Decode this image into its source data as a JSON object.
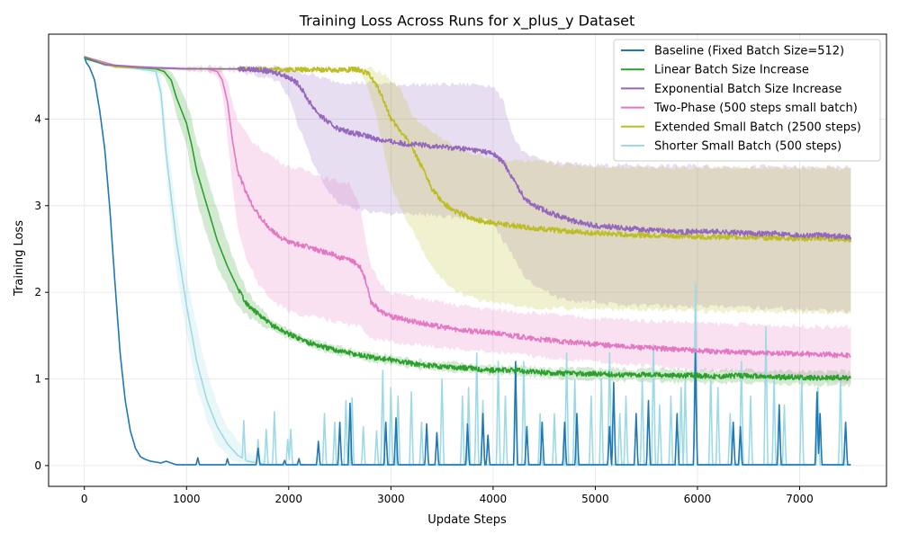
{
  "chart_data": {
    "type": "line",
    "title": "Training Loss Across Runs for x_plus_y Dataset",
    "xlabel": "Update Steps",
    "ylabel": "Training Loss",
    "xlim": [
      -350,
      7850
    ],
    "ylim": [
      -0.24,
      4.98
    ],
    "xticks": [
      0,
      1000,
      2000,
      3000,
      4000,
      5000,
      6000,
      7000
    ],
    "yticks": [
      0,
      1,
      2,
      3,
      4
    ],
    "grid": true,
    "legend_position": "top-right",
    "series": [
      {
        "name": "Baseline (Fixed Batch Size=512)",
        "color": "#1f77b4",
        "x": [
          0,
          20,
          50,
          100,
          150,
          200,
          250,
          300,
          350,
          400,
          450,
          500,
          550,
          600,
          650,
          700,
          750,
          800,
          850,
          900,
          1000,
          1100,
          1200,
          1400,
          1600,
          1800,
          2000,
          2400,
          2800,
          3200,
          3600,
          4000,
          4400,
          4800,
          5200,
          5600,
          6000,
          6400,
          6800,
          7200,
          7500
        ],
        "y": [
          4.72,
          4.65,
          4.6,
          4.45,
          4.1,
          3.65,
          2.95,
          2.1,
          1.3,
          0.75,
          0.4,
          0.2,
          0.1,
          0.07,
          0.05,
          0.04,
          0.03,
          0.05,
          0.03,
          0.01,
          0.01,
          0.01,
          0.01,
          0.01,
          0.01,
          0.01,
          0.01,
          0.01,
          0.01,
          0.01,
          0.01,
          0.01,
          0.01,
          0.01,
          0.01,
          0.01,
          0.01,
          0.01,
          0.01,
          0.01,
          0.01
        ],
        "spikes": [
          [
            1110,
            0.09
          ],
          [
            1400,
            0.08
          ],
          [
            1700,
            0.2
          ],
          [
            1960,
            0.06
          ],
          [
            2100,
            0.08
          ],
          [
            2290,
            0.28
          ],
          [
            2500,
            0.5
          ],
          [
            2600,
            0.72
          ],
          [
            2950,
            0.5
          ],
          [
            3050,
            0.55
          ],
          [
            3350,
            0.48
          ],
          [
            3450,
            0.38
          ],
          [
            3750,
            0.48
          ],
          [
            3900,
            0.6
          ],
          [
            3950,
            0.35
          ],
          [
            4220,
            1.2
          ],
          [
            4330,
            0.45
          ],
          [
            4480,
            0.5
          ],
          [
            4700,
            0.5
          ],
          [
            4820,
            0.6
          ],
          [
            5140,
            0.45
          ],
          [
            5180,
            0.96
          ],
          [
            5400,
            0.6
          ],
          [
            5520,
            0.75
          ],
          [
            5800,
            0.6
          ],
          [
            5980,
            1.3
          ],
          [
            6350,
            0.5
          ],
          [
            6420,
            0.45
          ],
          [
            6800,
            0.7
          ],
          [
            7170,
            0.85
          ],
          [
            7200,
            0.6
          ],
          [
            7450,
            0.5
          ]
        ]
      },
      {
        "name": "Linear Batch Size Increase",
        "color": "#2ca02c",
        "x": [
          0,
          200,
          400,
          700,
          780,
          850,
          900,
          1000,
          1050,
          1100,
          1200,
          1300,
          1400,
          1500,
          1600,
          1700,
          1800,
          1900,
          2000,
          2200,
          2400,
          2600,
          2800,
          3000,
          3200,
          3400,
          3600,
          3800,
          4000,
          4200,
          4400,
          4600,
          4800,
          5000,
          5200,
          5400,
          5600,
          5800,
          6000,
          6200,
          6400,
          6600,
          6800,
          7000,
          7200,
          7400,
          7500
        ],
        "y": [
          4.7,
          4.63,
          4.6,
          4.58,
          4.55,
          4.45,
          4.25,
          3.95,
          3.7,
          3.4,
          3.0,
          2.6,
          2.3,
          2.05,
          1.85,
          1.75,
          1.65,
          1.58,
          1.52,
          1.42,
          1.35,
          1.3,
          1.25,
          1.22,
          1.18,
          1.15,
          1.14,
          1.12,
          1.1,
          1.1,
          1.08,
          1.07,
          1.06,
          1.06,
          1.05,
          1.05,
          1.05,
          1.04,
          1.04,
          1.03,
          1.04,
          1.03,
          1.02,
          1.02,
          1.01,
          1.02,
          1.0
        ],
        "band_low": [
          4.7,
          4.62,
          4.58,
          4.55,
          4.5,
          4.3,
          4.05,
          3.7,
          3.35,
          3.05,
          2.65,
          2.3,
          2.05,
          1.85,
          1.72,
          1.65,
          1.58,
          1.52,
          1.46,
          1.38,
          1.3,
          1.25,
          1.2,
          1.17,
          1.13,
          1.1,
          1.09,
          1.07,
          1.05,
          1.05,
          1.03,
          1.01,
          1.0,
          0.99,
          0.98,
          0.98,
          0.97,
          0.96,
          0.96,
          0.95,
          0.96,
          0.95,
          0.94,
          0.94,
          0.93,
          0.94,
          0.92
        ],
        "band_high": [
          4.72,
          4.64,
          4.62,
          4.6,
          4.58,
          4.55,
          4.45,
          4.2,
          4.0,
          3.75,
          3.35,
          2.95,
          2.6,
          2.25,
          2.0,
          1.85,
          1.72,
          1.64,
          1.58,
          1.46,
          1.4,
          1.35,
          1.3,
          1.27,
          1.23,
          1.2,
          1.19,
          1.17,
          1.15,
          1.15,
          1.13,
          1.12,
          1.12,
          1.12,
          1.12,
          1.11,
          1.12,
          1.11,
          1.11,
          1.1,
          1.11,
          1.1,
          1.09,
          1.09,
          1.08,
          1.09,
          1.08
        ]
      },
      {
        "name": "Exponential Batch Size Increase",
        "color": "#9467bd",
        "x": [
          0,
          200,
          500,
          1000,
          1500,
          1700,
          1900,
          2000,
          2100,
          2200,
          2300,
          2400,
          2500,
          2700,
          2900,
          3100,
          3300,
          3500,
          3700,
          3900,
          4000,
          4100,
          4200,
          4300,
          4400,
          4600,
          4800,
          5000,
          5200,
          5500,
          5800,
          6000,
          6200,
          6500,
          6800,
          7000,
          7200,
          7500
        ],
        "y": [
          4.72,
          4.63,
          4.6,
          4.58,
          4.58,
          4.57,
          4.53,
          4.48,
          4.4,
          4.2,
          4.05,
          3.95,
          3.88,
          3.82,
          3.76,
          3.72,
          3.7,
          3.68,
          3.66,
          3.63,
          3.6,
          3.5,
          3.3,
          3.1,
          3.0,
          2.9,
          2.82,
          2.77,
          2.75,
          2.72,
          2.7,
          2.7,
          2.7,
          2.68,
          2.68,
          2.66,
          2.66,
          2.64
        ],
        "band_low": [
          4.72,
          4.62,
          4.58,
          4.56,
          4.55,
          4.5,
          4.45,
          4.25,
          3.9,
          3.6,
          3.35,
          3.15,
          3.0,
          2.95,
          2.92,
          2.9,
          2.9,
          2.88,
          2.86,
          2.84,
          2.8,
          2.6,
          2.4,
          2.2,
          2.1,
          1.95,
          1.9,
          1.88,
          1.86,
          1.85,
          1.84,
          1.84,
          1.83,
          1.82,
          1.82,
          1.8,
          1.8,
          1.78
        ],
        "band_high": [
          4.72,
          4.64,
          4.62,
          4.6,
          4.6,
          4.6,
          4.6,
          4.58,
          4.55,
          4.52,
          4.48,
          4.45,
          4.43,
          4.42,
          4.41,
          4.4,
          4.4,
          4.4,
          4.4,
          4.4,
          4.38,
          4.2,
          3.8,
          3.6,
          3.55,
          3.5,
          3.48,
          3.47,
          3.47,
          3.46,
          3.46,
          3.46,
          3.45,
          3.45,
          3.45,
          3.44,
          3.44,
          3.44
        ]
      },
      {
        "name": "Two-Phase (500 steps small batch)",
        "color": "#e377c2",
        "x": [
          0,
          300,
          700,
          1000,
          1200,
          1300,
          1350,
          1400,
          1450,
          1500,
          1600,
          1700,
          1800,
          1900,
          2000,
          2200,
          2400,
          2500,
          2600,
          2700,
          2750,
          2800,
          2900,
          3000,
          3200,
          3400,
          3600,
          3800,
          4000,
          4200,
          4400,
          4600,
          4800,
          5000,
          5200,
          5500,
          5800,
          6100,
          6400,
          6700,
          7000,
          7300,
          7500
        ],
        "y": [
          4.72,
          4.62,
          4.59,
          4.58,
          4.58,
          4.55,
          4.45,
          4.2,
          3.75,
          3.4,
          3.1,
          2.9,
          2.75,
          2.65,
          2.58,
          2.52,
          2.45,
          2.4,
          2.37,
          2.3,
          2.15,
          1.9,
          1.78,
          1.72,
          1.67,
          1.62,
          1.58,
          1.55,
          1.53,
          1.5,
          1.46,
          1.44,
          1.42,
          1.4,
          1.38,
          1.36,
          1.34,
          1.32,
          1.31,
          1.3,
          1.29,
          1.28,
          1.27
        ],
        "band_low": [
          4.72,
          4.61,
          4.58,
          4.57,
          4.56,
          4.5,
          4.3,
          3.8,
          3.2,
          2.75,
          2.35,
          2.1,
          1.95,
          1.85,
          1.78,
          1.72,
          1.68,
          1.65,
          1.62,
          1.6,
          1.55,
          1.48,
          1.45,
          1.42,
          1.4,
          1.38,
          1.35,
          1.33,
          1.31,
          1.29,
          1.26,
          1.24,
          1.22,
          1.2,
          1.18,
          1.15,
          1.12,
          1.1,
          1.08,
          1.05,
          1.02,
          0.98,
          0.95
        ],
        "band_high": [
          4.72,
          4.63,
          4.6,
          4.59,
          4.59,
          4.58,
          4.55,
          4.45,
          4.2,
          3.98,
          3.8,
          3.68,
          3.6,
          3.52,
          3.45,
          3.4,
          3.3,
          3.28,
          3.25,
          3.0,
          2.6,
          2.3,
          2.1,
          2.0,
          1.95,
          1.9,
          1.86,
          1.83,
          1.8,
          1.78,
          1.76,
          1.74,
          1.72,
          1.7,
          1.69,
          1.67,
          1.66,
          1.64,
          1.63,
          1.62,
          1.61,
          1.6,
          1.6
        ]
      },
      {
        "name": "Extended Small Batch (2500 steps)",
        "color": "#bcbd22",
        "x": [
          0,
          300,
          1000,
          2000,
          2700,
          2800,
          2900,
          3000,
          3100,
          3200,
          3300,
          3400,
          3500,
          3600,
          3700,
          3800,
          3900,
          4000,
          4200,
          4400,
          4600,
          4800,
          5000,
          5200,
          5500,
          5800,
          6100,
          6400,
          6700,
          7000,
          7300,
          7500
        ],
        "y": [
          4.72,
          4.6,
          4.58,
          4.57,
          4.57,
          4.5,
          4.3,
          4.0,
          3.85,
          3.7,
          3.45,
          3.2,
          3.05,
          2.95,
          2.9,
          2.85,
          2.82,
          2.8,
          2.77,
          2.74,
          2.72,
          2.7,
          2.68,
          2.67,
          2.66,
          2.65,
          2.64,
          2.64,
          2.63,
          2.62,
          2.62,
          2.61
        ],
        "band_low": [
          4.72,
          4.59,
          4.57,
          4.56,
          4.55,
          4.3,
          3.8,
          3.25,
          2.95,
          2.75,
          2.5,
          2.3,
          2.15,
          2.05,
          1.98,
          1.94,
          1.9,
          1.88,
          1.85,
          1.83,
          1.82,
          1.81,
          1.8,
          1.8,
          1.79,
          1.79,
          1.78,
          1.78,
          1.78,
          1.77,
          1.77,
          1.77
        ],
        "band_high": [
          4.72,
          4.61,
          4.59,
          4.58,
          4.58,
          4.58,
          4.55,
          4.45,
          4.35,
          4.05,
          3.95,
          3.85,
          3.78,
          3.7,
          3.65,
          3.6,
          3.57,
          3.55,
          3.52,
          3.5,
          3.48,
          3.47,
          3.46,
          3.45,
          3.45,
          3.44,
          3.44,
          3.44,
          3.43,
          3.43,
          3.43,
          3.42
        ]
      },
      {
        "name": "Shorter Small Batch (500 steps)",
        "color": "#9edae5",
        "x": [
          0,
          200,
          500,
          700,
          750,
          800,
          850,
          900,
          1000,
          1100,
          1200,
          1300,
          1400,
          1500,
          1600,
          1800,
          2000,
          2500,
          3000,
          3500,
          4000,
          4500,
          5000,
          5500,
          6000,
          6500,
          7000,
          7500
        ],
        "y": [
          4.72,
          4.62,
          4.59,
          4.55,
          4.3,
          3.6,
          3.1,
          2.6,
          1.85,
          1.2,
          0.75,
          0.45,
          0.25,
          0.12,
          0.05,
          0.01,
          0.01,
          0.01,
          0.01,
          0.01,
          0.01,
          0.01,
          0.01,
          0.01,
          0.01,
          0.01,
          0.01,
          0.01
        ],
        "band_low": [
          4.72,
          4.61,
          4.58,
          4.5,
          4.1,
          3.4,
          2.8,
          2.25,
          1.5,
          0.9,
          0.5,
          0.25,
          0.1,
          0.04,
          0.01,
          0.0,
          0.0,
          0.0,
          0.0,
          0.0,
          0.0,
          0.0,
          0.0,
          0.0,
          0.0,
          0.0,
          0.0,
          0.0
        ],
        "band_high": [
          4.72,
          4.63,
          4.6,
          4.58,
          4.5,
          3.9,
          3.4,
          2.95,
          2.2,
          1.6,
          1.1,
          0.7,
          0.45,
          0.28,
          0.15,
          0.05,
          0.02,
          0.02,
          0.02,
          0.02,
          0.02,
          0.02,
          0.02,
          0.02,
          0.02,
          0.02,
          0.02,
          0.02
        ],
        "spikes": [
          [
            1560,
            0.52
          ],
          [
            1700,
            0.3
          ],
          [
            1780,
            0.42
          ],
          [
            1860,
            0.62
          ],
          [
            1990,
            0.3
          ],
          [
            2020,
            0.42
          ],
          [
            2350,
            0.6
          ],
          [
            2450,
            0.5
          ],
          [
            2560,
            0.75
          ],
          [
            2620,
            0.78
          ],
          [
            2730,
            0.45
          ],
          [
            2860,
            0.4
          ],
          [
            2920,
            1.1
          ],
          [
            3000,
            0.9
          ],
          [
            3070,
            0.8
          ],
          [
            3200,
            0.85
          ],
          [
            3300,
            0.5
          ],
          [
            3500,
            1.0
          ],
          [
            3700,
            0.8
          ],
          [
            3760,
            0.9
          ],
          [
            3840,
            1.3
          ],
          [
            3900,
            0.75
          ],
          [
            4050,
            1.2
          ],
          [
            4120,
            0.8
          ],
          [
            4220,
            0.85
          ],
          [
            4300,
            1.2
          ],
          [
            4460,
            0.6
          ],
          [
            4600,
            0.6
          ],
          [
            4720,
            1.3
          ],
          [
            4800,
            1.0
          ],
          [
            4960,
            0.8
          ],
          [
            5060,
            1.0
          ],
          [
            5140,
            1.3
          ],
          [
            5240,
            0.6
          ],
          [
            5300,
            0.8
          ],
          [
            5460,
            1.0
          ],
          [
            5570,
            1.4
          ],
          [
            5630,
            0.7
          ],
          [
            5740,
            0.8
          ],
          [
            5840,
            0.9
          ],
          [
            5880,
            1.0
          ],
          [
            5980,
            2.1
          ],
          [
            6130,
            1.0
          ],
          [
            6200,
            0.9
          ],
          [
            6320,
            0.6
          ],
          [
            6430,
            1.2
          ],
          [
            6520,
            0.8
          ],
          [
            6670,
            1.6
          ],
          [
            6750,
            1.0
          ],
          [
            6850,
            0.7
          ],
          [
            7020,
            1.0
          ],
          [
            7180,
            0.9
          ],
          [
            7400,
            1.0
          ]
        ]
      }
    ]
  }
}
